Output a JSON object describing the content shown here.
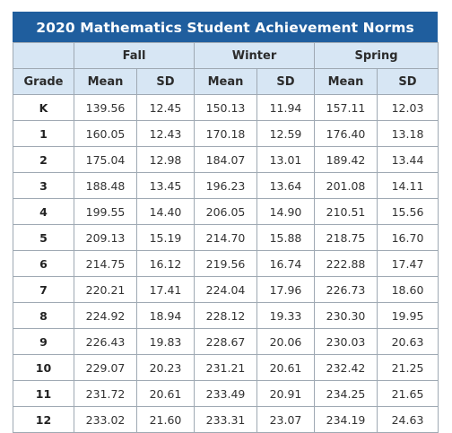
{
  "title": "2020 Mathematics Student Achievement Norms",
  "seasons": [
    "Fall",
    "Winter",
    "Spring"
  ],
  "columns": {
    "grade": "Grade",
    "mean": "Mean",
    "sd": "SD"
  },
  "rows": [
    {
      "grade": "K",
      "values": [
        "139.56",
        "12.45",
        "150.13",
        "11.94",
        "157.11",
        "12.03"
      ]
    },
    {
      "grade": "1",
      "values": [
        "160.05",
        "12.43",
        "170.18",
        "12.59",
        "176.40",
        "13.18"
      ]
    },
    {
      "grade": "2",
      "values": [
        "175.04",
        "12.98",
        "184.07",
        "13.01",
        "189.42",
        "13.44"
      ]
    },
    {
      "grade": "3",
      "values": [
        "188.48",
        "13.45",
        "196.23",
        "13.64",
        "201.08",
        "14.11"
      ]
    },
    {
      "grade": "4",
      "values": [
        "199.55",
        "14.40",
        "206.05",
        "14.90",
        "210.51",
        "15.56"
      ]
    },
    {
      "grade": "5",
      "values": [
        "209.13",
        "15.19",
        "214.70",
        "15.88",
        "218.75",
        "16.70"
      ]
    },
    {
      "grade": "6",
      "values": [
        "214.75",
        "16.12",
        "219.56",
        "16.74",
        "222.88",
        "17.47"
      ]
    },
    {
      "grade": "7",
      "values": [
        "220.21",
        "17.41",
        "224.04",
        "17.96",
        "226.73",
        "18.60"
      ]
    },
    {
      "grade": "8",
      "values": [
        "224.92",
        "18.94",
        "228.12",
        "19.33",
        "230.30",
        "19.95"
      ]
    },
    {
      "grade": "9",
      "values": [
        "226.43",
        "19.83",
        "228.67",
        "20.06",
        "230.03",
        "20.63"
      ]
    },
    {
      "grade": "10",
      "values": [
        "229.07",
        "20.23",
        "231.21",
        "20.61",
        "232.42",
        "21.25"
      ]
    },
    {
      "grade": "11",
      "values": [
        "231.72",
        "20.61",
        "233.49",
        "20.91",
        "234.25",
        "21.65"
      ]
    },
    {
      "grade": "12",
      "values": [
        "233.02",
        "21.60",
        "233.31",
        "23.07",
        "234.19",
        "24.63"
      ]
    }
  ],
  "colors": {
    "title_bg": "#1f5e9e",
    "header_bg": "#d7e6f4",
    "border": "#9fa9b3"
  }
}
